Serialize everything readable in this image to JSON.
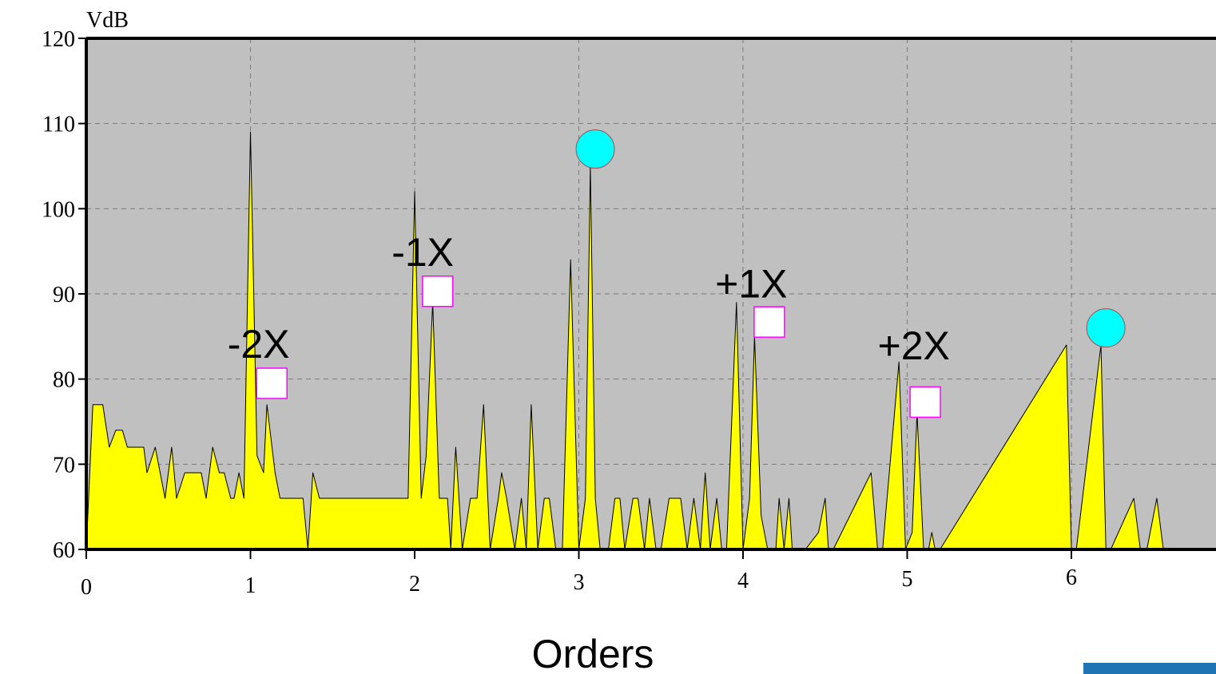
{
  "chart_data": {
    "type": "area",
    "xlabel": "Orders",
    "ylabel": "VdB",
    "xlim": [
      0,
      6.9
    ],
    "ylim": [
      60,
      120
    ],
    "xticks": [
      0,
      1,
      2,
      3,
      4,
      5,
      6
    ],
    "yticks": [
      60,
      70,
      80,
      90,
      100,
      110,
      120
    ],
    "grid": true,
    "colors": {
      "plot_bg": "#c0c0c0",
      "fill": "#ffff00",
      "circle_marker": "#00ffff",
      "square_marker": "#ffffff",
      "square_border": "#ff00ff"
    },
    "series": [
      {
        "x": [
          0,
          0.04,
          0.1,
          0.14,
          0.18,
          0.22,
          0.25,
          0.35,
          0.37,
          0.42,
          0.48,
          0.52,
          0.55,
          0.6,
          0.7,
          0.73,
          0.77,
          0.81,
          0.84,
          0.88,
          0.9,
          0.93,
          0.96,
          1.0,
          1.04,
          1.08,
          1.1,
          1.15,
          1.18,
          1.22,
          1.32,
          1.35,
          1.38,
          1.42,
          1.5,
          1.7,
          1.96,
          2.0,
          2.04,
          2.07,
          2.11,
          2.15,
          2.2,
          2.22,
          2.25,
          2.29,
          2.34,
          2.38,
          2.42,
          2.46,
          2.51,
          2.53,
          2.56,
          2.61,
          2.65,
          2.68,
          2.71,
          2.75,
          2.79,
          2.82,
          2.86,
          2.9,
          2.95,
          3.0,
          3.04,
          3.07,
          3.1,
          3.13,
          3.18,
          3.22,
          3.25,
          3.28,
          3.33,
          3.36,
          3.4,
          3.43,
          3.47,
          3.5,
          3.55,
          3.58,
          3.62,
          3.66,
          3.7,
          3.74,
          3.77,
          3.8,
          3.84,
          3.87,
          3.9,
          3.96,
          4.0,
          4.04,
          4.07,
          4.11,
          4.15,
          4.2,
          4.22,
          4.25,
          4.28,
          4.3,
          4.33,
          4.38,
          4.46,
          4.5,
          4.52,
          4.55,
          4.78,
          4.82,
          4.85,
          4.95,
          4.99,
          5.03,
          5.06,
          5.1,
          5.13,
          5.15,
          5.17,
          5.2,
          5.97,
          6.0,
          6.03,
          6.18,
          6.21,
          6.24,
          6.38,
          6.42,
          6.46,
          6.52,
          6.56,
          6.6
        ],
        "values": [
          60,
          77,
          77,
          72,
          74,
          74,
          72,
          72,
          69,
          72,
          66,
          72,
          66,
          69,
          69,
          66,
          72,
          69,
          69,
          66,
          66,
          69,
          66,
          109,
          71,
          69,
          77,
          69,
          66,
          66,
          66,
          60,
          69,
          66,
          66,
          66,
          66,
          102,
          66,
          71,
          89,
          66,
          66,
          60,
          72,
          60,
          66,
          66,
          77,
          60,
          66,
          69,
          66,
          60,
          66,
          60,
          77,
          60,
          66,
          66,
          60,
          60,
          94,
          60,
          66,
          105,
          66,
          60,
          60,
          66,
          66,
          60,
          66,
          66,
          60,
          66,
          60,
          60,
          66,
          66,
          66,
          60,
          66,
          60,
          69,
          60,
          66,
          60,
          60,
          89,
          60,
          66,
          85,
          64,
          60,
          60,
          66,
          60,
          66,
          60,
          60,
          60,
          62,
          66,
          60,
          60,
          69,
          60,
          60,
          82,
          60,
          62,
          76,
          60,
          60,
          62,
          60,
          60,
          84,
          60,
          60,
          84,
          60,
          60,
          66,
          60,
          60,
          66,
          60,
          60
        ]
      }
    ],
    "circle_markers": [
      {
        "x": 3.1,
        "y": 107
      },
      {
        "x": 6.21,
        "y": 86
      }
    ],
    "square_markers": [
      {
        "x": 1.13,
        "y": 79.5
      },
      {
        "x": 2.14,
        "y": 90.3
      },
      {
        "x": 4.16,
        "y": 86.7
      },
      {
        "x": 5.11,
        "y": 77.3
      }
    ],
    "annotations": [
      {
        "text": "-2X",
        "x": 0.86,
        "y": 82.5
      },
      {
        "text": "-1X",
        "x": 1.86,
        "y": 93.3
      },
      {
        "text": "+1X",
        "x": 3.83,
        "y": 89.6
      },
      {
        "text": "+2X",
        "x": 4.82,
        "y": 82.3
      }
    ]
  }
}
